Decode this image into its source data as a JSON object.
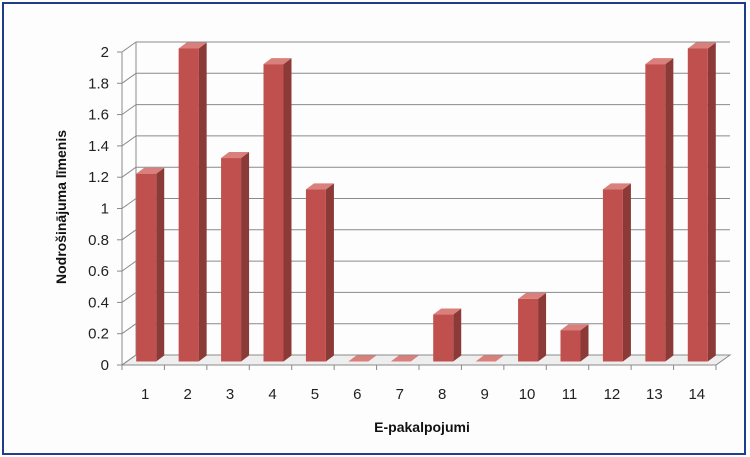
{
  "chart_data": {
    "type": "bar",
    "categories": [
      "1",
      "2",
      "3",
      "4",
      "5",
      "6",
      "7",
      "8",
      "9",
      "10",
      "11",
      "12",
      "13",
      "14"
    ],
    "values": [
      1.2,
      2.0,
      1.3,
      1.9,
      1.1,
      0,
      0,
      0.3,
      0,
      0.4,
      0.2,
      1.1,
      1.9,
      2.0
    ],
    "xlabel": "E-pakalpojumi",
    "ylabel": "Nodrošinājuma līmenis",
    "ylim": [
      0,
      2
    ],
    "yticks": [
      "0",
      "0.2",
      "0.4",
      "0.6",
      "0.8",
      "1",
      "1.2",
      "1.4",
      "1.6",
      "1.8",
      "2"
    ],
    "grid": true,
    "legend": "none",
    "three_d": true,
    "colors": {
      "bar_front": "#c0504d",
      "bar_side": "#8c3a37",
      "bar_top": "#d9807c",
      "grid": "#8a8a8a",
      "frame": "#1f3d8c"
    }
  }
}
